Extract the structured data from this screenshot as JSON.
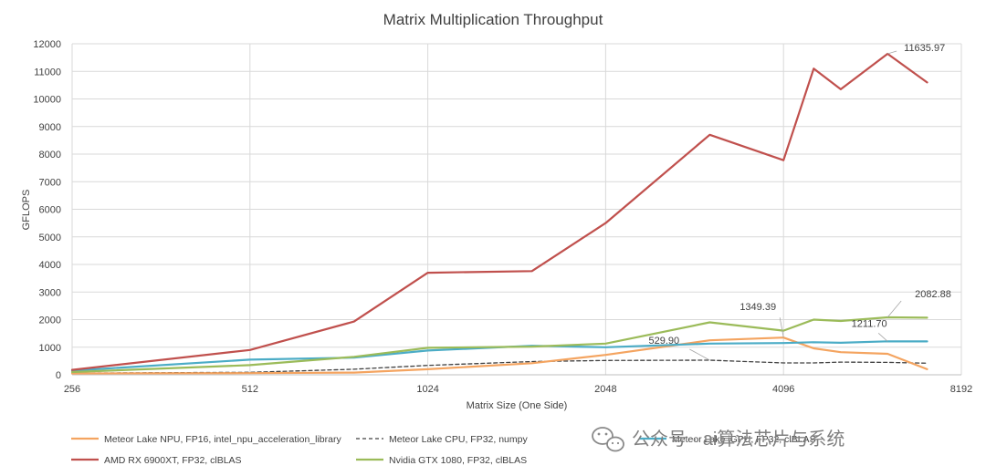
{
  "chart_data": {
    "type": "line",
    "title": "Matrix Multiplication Throughput",
    "xlabel": "Matrix Size (One Side)",
    "ylabel": "GFLOPS",
    "x_scale": "log2",
    "xlim": [
      256,
      8192
    ],
    "ylim": [
      0,
      12000
    ],
    "x_ticks": [
      256,
      512,
      1024,
      2048,
      4096,
      8192
    ],
    "y_ticks": [
      0,
      1000,
      2000,
      3000,
      4000,
      5000,
      6000,
      7000,
      8000,
      9000,
      10000,
      11000,
      12000
    ],
    "grid": true,
    "legend_position": "bottom",
    "series": [
      {
        "name": "Meteor Lake NPU, FP16, intel_npu_acceleration_library",
        "color": "#F4A460",
        "style": "solid",
        "x": [
          256,
          512,
          768,
          1024,
          1536,
          2048,
          3072,
          4096,
          4608,
          5120,
          6144,
          7168
        ],
        "y": [
          50,
          60,
          80,
          200,
          420,
          720,
          1250,
          1349.39,
          960,
          820,
          760,
          200
        ]
      },
      {
        "name": "Meteor Lake CPU, FP32, numpy",
        "color": "#404040",
        "style": "dashed",
        "x": [
          256,
          512,
          768,
          1024,
          1536,
          2048,
          3072,
          4096,
          4608,
          5120,
          6144,
          7168
        ],
        "y": [
          60,
          90,
          200,
          340,
          480,
          520,
          529.9,
          430,
          430,
          460,
          450,
          420
        ]
      },
      {
        "name": "Meteor Lake iGPU, FP32, clBLAS",
        "color": "#4BACC6",
        "style": "solid",
        "x": [
          256,
          512,
          768,
          1024,
          1536,
          2048,
          3072,
          4096,
          4608,
          5120,
          6144,
          7168
        ],
        "y": [
          150,
          550,
          620,
          880,
          1050,
          1000,
          1130,
          1150,
          1180,
          1160,
          1211.7,
          1210
        ]
      },
      {
        "name": "AMD RX 6900XT, FP32, clBLAS",
        "color": "#C0504D",
        "style": "solid",
        "x": [
          256,
          512,
          768,
          1024,
          1536,
          2048,
          3072,
          4096,
          4608,
          5120,
          6144,
          7168
        ],
        "y": [
          180,
          900,
          1930,
          3700,
          3760,
          5500,
          8700,
          7780,
          11100,
          10350,
          11635.97,
          10600
        ]
      },
      {
        "name": "Nvidia GTX 1080, FP32, clBLAS",
        "color": "#9BBB59",
        "style": "solid",
        "x": [
          256,
          512,
          768,
          1024,
          1536,
          2048,
          3072,
          4096,
          4608,
          5120,
          6144,
          7168
        ],
        "y": [
          100,
          350,
          650,
          980,
          1020,
          1130,
          1900,
          1600,
          2000,
          1950,
          2082.88,
          2070
        ]
      }
    ],
    "annotations": [
      {
        "text": "11635.97",
        "x": 6144,
        "y": 11635.97
      },
      {
        "text": "1349.39",
        "x": 4096,
        "y": 1349.39
      },
      {
        "text": "529.90",
        "x": 3072,
        "y": 529.9
      },
      {
        "text": "1211.70",
        "x": 6144,
        "y": 1211.7
      },
      {
        "text": "2082.88",
        "x": 6144,
        "y": 2082.88
      }
    ]
  },
  "watermark": {
    "text": "公众号 · ai算法芯片与系统",
    "icon": "wechat-icon"
  }
}
